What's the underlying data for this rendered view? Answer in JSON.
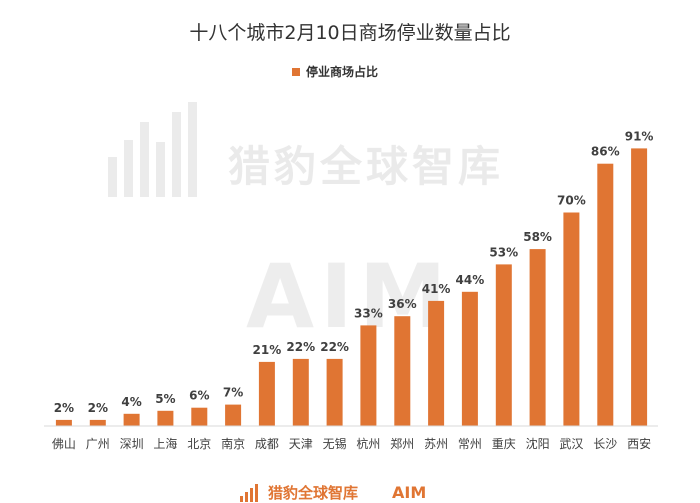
{
  "chart_data": {
    "type": "bar",
    "title": "十八个城市2月10日商场停业数量占比",
    "categories": [
      "佛山",
      "广州",
      "深圳",
      "上海",
      "北京",
      "南京",
      "成都",
      "天津",
      "无锡",
      "杭州",
      "郑州",
      "苏州",
      "常州",
      "重庆",
      "沈阳",
      "武汉",
      "长沙",
      "西安"
    ],
    "series": [
      {
        "name": "停业商场占比",
        "values": [
          2,
          2,
          4,
          5,
          6,
          7,
          21,
          22,
          22,
          33,
          36,
          41,
          44,
          53,
          58,
          70,
          86,
          91
        ],
        "color": "#E07533"
      }
    ],
    "value_labels": [
      "2%",
      "2%",
      "4%",
      "5%",
      "6%",
      "7%",
      "21%",
      "22%",
      "22%",
      "33%",
      "36%",
      "41%",
      "44%",
      "53%",
      "58%",
      "70%",
      "86%",
      "91%"
    ],
    "ylim": [
      0,
      100
    ],
    "y_axis_visible": false,
    "grid": false,
    "legend_position": "top-center"
  },
  "watermark": {
    "brand_text": "猎豹全球智库",
    "logo_text": "AIM"
  },
  "footer": {
    "brand_text": "猎豹全球智库",
    "logo_text": "AIM"
  }
}
